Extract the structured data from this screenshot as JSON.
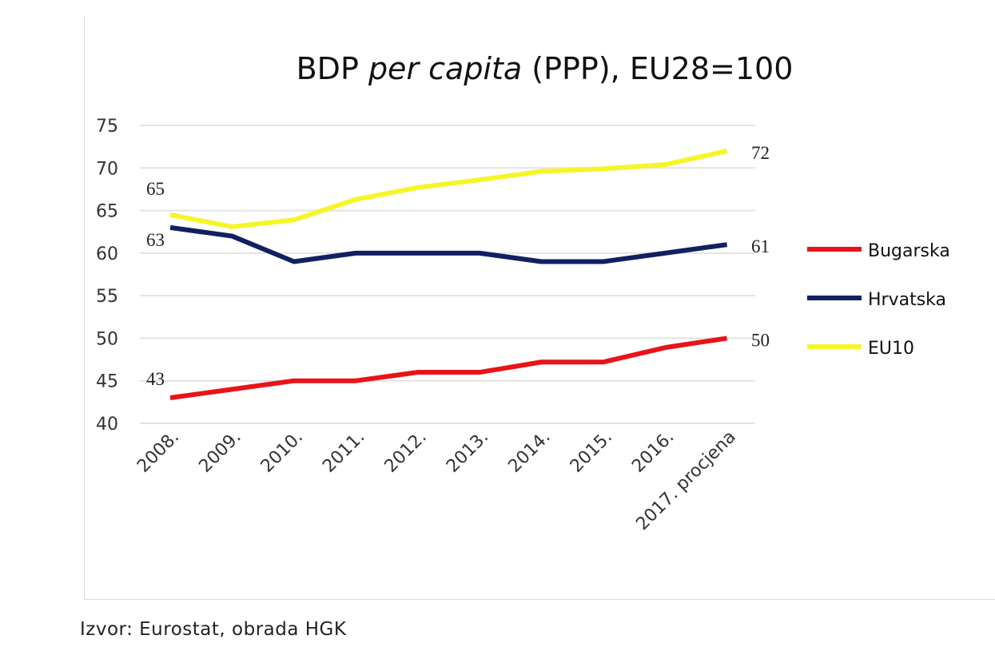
{
  "chart_data": {
    "type": "line",
    "title": "BDP per capita (PPP), EU28=100",
    "title_parts": {
      "a": "BDP ",
      "b": "per capita",
      "c": " (PPP), EU28=100"
    },
    "categories": [
      "2008.",
      "2009.",
      "2010.",
      "2011.",
      "2012.",
      "2013.",
      "2014.",
      "2015.",
      "2016.",
      "2017. procjena"
    ],
    "ylim": [
      40,
      75
    ],
    "yticks": [
      "40",
      "45",
      "50",
      "55",
      "60",
      "65",
      "70",
      "75"
    ],
    "grid": true,
    "legend_placement": "right",
    "series": [
      {
        "name": "Bugarska",
        "color": "#e8141b",
        "values": [
          43,
          44,
          45,
          45,
          46,
          46,
          47.2,
          47.2,
          48.9,
          50
        ],
        "labels": {
          "first": "43",
          "last": "50"
        }
      },
      {
        "name": "Hrvatska",
        "color": "#102060",
        "values": [
          63,
          62,
          59,
          60,
          60,
          60,
          59,
          59,
          60,
          61
        ],
        "labels": {
          "first": "63",
          "last": "61"
        }
      },
      {
        "name": "EU10",
        "color": "#f5f52a",
        "values": [
          64.5,
          63.1,
          63.9,
          66.3,
          67.7,
          68.6,
          69.6,
          69.9,
          70.4,
          72
        ],
        "labels": {
          "first": "65",
          "last": "72"
        }
      }
    ]
  },
  "source": "Izvor: Eurostat, obrada HGK"
}
